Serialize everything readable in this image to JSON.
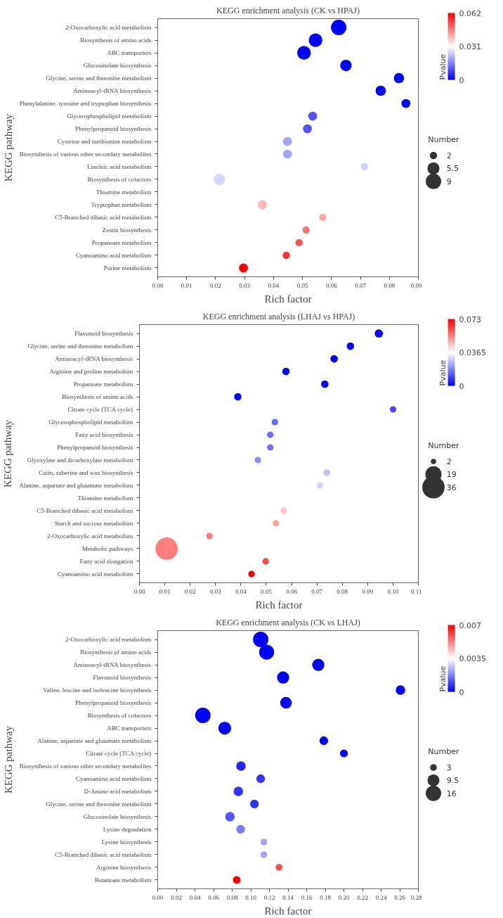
{
  "chart_data": [
    {
      "type": "bubble",
      "title": "KEGG enrichment analysis (CK vs HPAJ)",
      "xlabel": "Rich factor",
      "ylabel": "KEGG pathway",
      "orientation": "horizontal",
      "marker": "circle",
      "grid": false,
      "clabel": "Pvalue",
      "legend_title": "Number",
      "categories": [
        "2-Oxocarboxylic acid metabolism",
        "Biosynthesis of amino acids",
        "ABC transporters",
        "Glucosinolate biosynthesis",
        "Glycine, serine and threonine metabolism",
        "Aminoacyl-tRNA biosynthesis",
        "Phenylalanine, tyrosine and tryptophan biosynthesis",
        "Glycerophospholipid metabolism",
        "Phenylpropanoid biosynthesis",
        "Cysteine and methionine metabolism",
        "Biosynthesis of various other secondary metabolites",
        "Linoleic acid metabolism",
        "Biosynthesis of cofactors",
        "Thiamine metabolism",
        "Tryptophan metabolism",
        "C5-Branched dibasic acid metabolism",
        "Zeatin biosynthesis",
        "Propanoate metabolism",
        "Cyanoamino acid metabolism",
        "Purine metabolism"
      ],
      "values": [
        0.0625,
        0.0545,
        0.0505,
        0.065,
        0.0833,
        0.077,
        0.0857,
        0.0535,
        0.0517,
        0.0448,
        0.0448,
        0.0714,
        0.0213,
        null,
        0.0361,
        0.057,
        0.0512,
        0.0488,
        0.0444,
        0.0296
      ],
      "sizes": [
        9,
        7,
        7,
        5,
        4,
        4,
        3,
        3,
        3,
        3,
        3,
        2,
        5,
        null,
        3,
        2,
        2,
        2,
        2,
        3
      ],
      "cvalues": [
        0,
        0,
        0,
        0,
        0,
        0,
        0,
        0.01,
        0.01,
        0.02,
        0.02,
        0.025,
        0.026,
        null,
        0.04,
        0.042,
        0.048,
        0.052,
        0.056,
        0.062
      ],
      "size_legend": [
        2,
        5.5,
        9
      ],
      "clim": [
        0,
        0.062
      ],
      "cticks": [
        0,
        0.031,
        0.062
      ],
      "xlim": [
        0,
        0.09
      ],
      "xticks": [
        {
          "value": 0,
          "label": "0.00"
        },
        {
          "value": 0.01,
          "label": "0.01"
        },
        {
          "value": 0.02,
          "label": "0.02"
        },
        {
          "value": 0.03,
          "label": "0.03"
        },
        {
          "value": 0.04,
          "label": "0.04"
        },
        {
          "value": 0.05,
          "label": "0.05"
        },
        {
          "value": 0.06,
          "label": "0.06"
        },
        {
          "value": 0.07,
          "label": "0.07"
        },
        {
          "value": 0.08,
          "label": "0.08"
        },
        {
          "value": 0.09,
          "label": "0.09"
        }
      ]
    },
    {
      "type": "bubble",
      "title": "KEGG enrichment analysis (LHAJ vs HPAJ)",
      "xlabel": "Rich factor",
      "ylabel": "KEGG pathway",
      "orientation": "horizontal",
      "marker": "circle",
      "grid": false,
      "clabel": "Pvalue",
      "legend_title": "Number",
      "categories": [
        "Flavonoid biosynthesis",
        "Glycine, serine and threonine metabolism",
        "Aminoacyl-tRNA biosynthesis",
        "Arginine and proline metabolism",
        "Propanoate metabolism",
        "Biosynthesis of amino acids",
        "Citrate cycle (TCA cycle)",
        "Glycerophospholipid metabolism",
        "Fatty acid biosynthesis",
        "Phenylpropanoid biosynthesis",
        "Glyoxylate and dicarboxylate metabolism",
        "Cutin, suberine and wax biosynthesis",
        "Alanine, aspartate and glutamate metabolism",
        "Thiamine metabolism",
        "C5-Branched dibasic acid metabolism",
        "Starch and sucrose metabolism",
        "2-Oxocarboxylic acid metabolism",
        "Metabolic pathways",
        "Fatty acid elongation",
        "Cyanoamino acid metabolism"
      ],
      "values": [
        0.0944,
        0.0832,
        0.0768,
        0.0578,
        0.0731,
        0.0388,
        0.1,
        0.0534,
        0.0516,
        0.0516,
        0.0467,
        0.0739,
        0.0712,
        null,
        0.0569,
        0.0538,
        0.0276,
        0.0107,
        0.0498,
        0.0442
      ],
      "sizes": [
        5,
        4,
        4,
        4,
        4,
        4,
        3,
        3,
        3,
        3,
        3,
        3,
        3,
        null,
        3,
        3,
        3,
        36,
        3,
        3
      ],
      "cvalues": [
        0,
        0,
        0,
        0,
        0,
        0,
        0.01,
        0.015,
        0.016,
        0.016,
        0.02,
        0.027,
        0.03,
        null,
        0.045,
        0.05,
        0.055,
        0.055,
        0.063,
        0.073
      ],
      "size_legend": [
        2,
        19,
        36
      ],
      "clim": [
        0,
        0.073
      ],
      "cticks": [
        0,
        0.0365,
        0.073
      ],
      "xlim": [
        0,
        0.11
      ],
      "xticks": [
        {
          "value": 0,
          "label": "0.00"
        },
        {
          "value": 0.01,
          "label": "0.01"
        },
        {
          "value": 0.02,
          "label": "0.02"
        },
        {
          "value": 0.03,
          "label": "0.03"
        },
        {
          "value": 0.04,
          "label": "0.04"
        },
        {
          "value": 0.05,
          "label": "0.05"
        },
        {
          "value": 0.06,
          "label": "0.06"
        },
        {
          "value": 0.07,
          "label": "0.07"
        },
        {
          "value": 0.08,
          "label": "0.08"
        },
        {
          "value": 0.09,
          "label": "0.09"
        },
        {
          "value": 0.1,
          "label": "0.10"
        },
        {
          "value": 0.11,
          "label": "0.11"
        }
      ]
    },
    {
      "type": "bubble",
      "title": "KEGG enrichment analysis (CK vs LHAJ)",
      "xlabel": "Rich factor",
      "ylabel": "KEGG pathway",
      "orientation": "horizontal",
      "marker": "circle",
      "grid": false,
      "clabel": "Pvalue",
      "legend_title": "Number",
      "categories": [
        "2-Oxocarboxylic acid metabolism",
        "Biosynthesis of amino acids",
        "Aminoacyl-tRNA biosynthesis",
        "Flavonoid biosynthesis",
        "Valine, leucine and isoleucine biosynthesis",
        "Phenylpropanoid biosynthesis",
        "Biosynthesis of cofactors",
        "ABC transporters",
        "Alanine, aspartate and glutamate metabolism",
        "Citrate cycle (TCA cycle)",
        "Biosynthesis of various other secondary metabolites",
        "Cyanoamino acid metabolism",
        "D-Amino acid metabolism",
        "Glycine, serine and threonine metabolism",
        "Glucosinolate biosynthesis",
        "Lysine degradation",
        "Lysine biosynthesis",
        "C5-Branched dibasic acid metabolism",
        "Arginine biosynthesis",
        "Butanoate metabolism"
      ],
      "values": [
        0.1106,
        0.117,
        0.1725,
        0.1347,
        0.2608,
        0.1378,
        0.0485,
        0.072,
        0.1784,
        0.2,
        0.0894,
        0.1106,
        0.0866,
        0.1039,
        0.0776,
        0.0891,
        0.114,
        0.114,
        0.1303,
        0.0849
      ],
      "sizes": [
        16,
        15,
        10,
        10,
        6,
        9,
        16,
        11,
        5,
        4,
        6,
        5,
        6,
        5,
        6,
        5,
        3,
        3,
        3,
        4
      ],
      "cvalues": [
        0,
        0,
        0,
        0,
        0,
        0,
        0,
        0,
        0,
        0,
        0.0005,
        0.0007,
        0.0007,
        0.0007,
        0.0012,
        0.0017,
        0.0022,
        0.0022,
        0.006,
        0.007
      ],
      "size_legend": [
        3,
        9.5,
        16
      ],
      "clim": [
        0,
        0.007
      ],
      "cticks": [
        0,
        0.0035,
        0.007
      ],
      "xlim": [
        0,
        0.28
      ],
      "xticks": [
        {
          "value": 0,
          "label": "0.00"
        },
        {
          "value": 0.02,
          "label": "0.02"
        },
        {
          "value": 0.04,
          "label": "0.04"
        },
        {
          "value": 0.06,
          "label": "0.06"
        },
        {
          "value": 0.08,
          "label": "0.08"
        },
        {
          "value": 0.1,
          "label": "0.10"
        },
        {
          "value": 0.12,
          "label": "0.12"
        },
        {
          "value": 0.14,
          "label": "0.14"
        },
        {
          "value": 0.16,
          "label": "0.16"
        },
        {
          "value": 0.18,
          "label": "0.18"
        },
        {
          "value": 0.2,
          "label": "0.20"
        },
        {
          "value": 0.22,
          "label": "0.22"
        },
        {
          "value": 0.24,
          "label": "0.24"
        },
        {
          "value": 0.26,
          "label": "0.26"
        },
        {
          "value": 0.28,
          "label": "0.28"
        }
      ]
    }
  ]
}
